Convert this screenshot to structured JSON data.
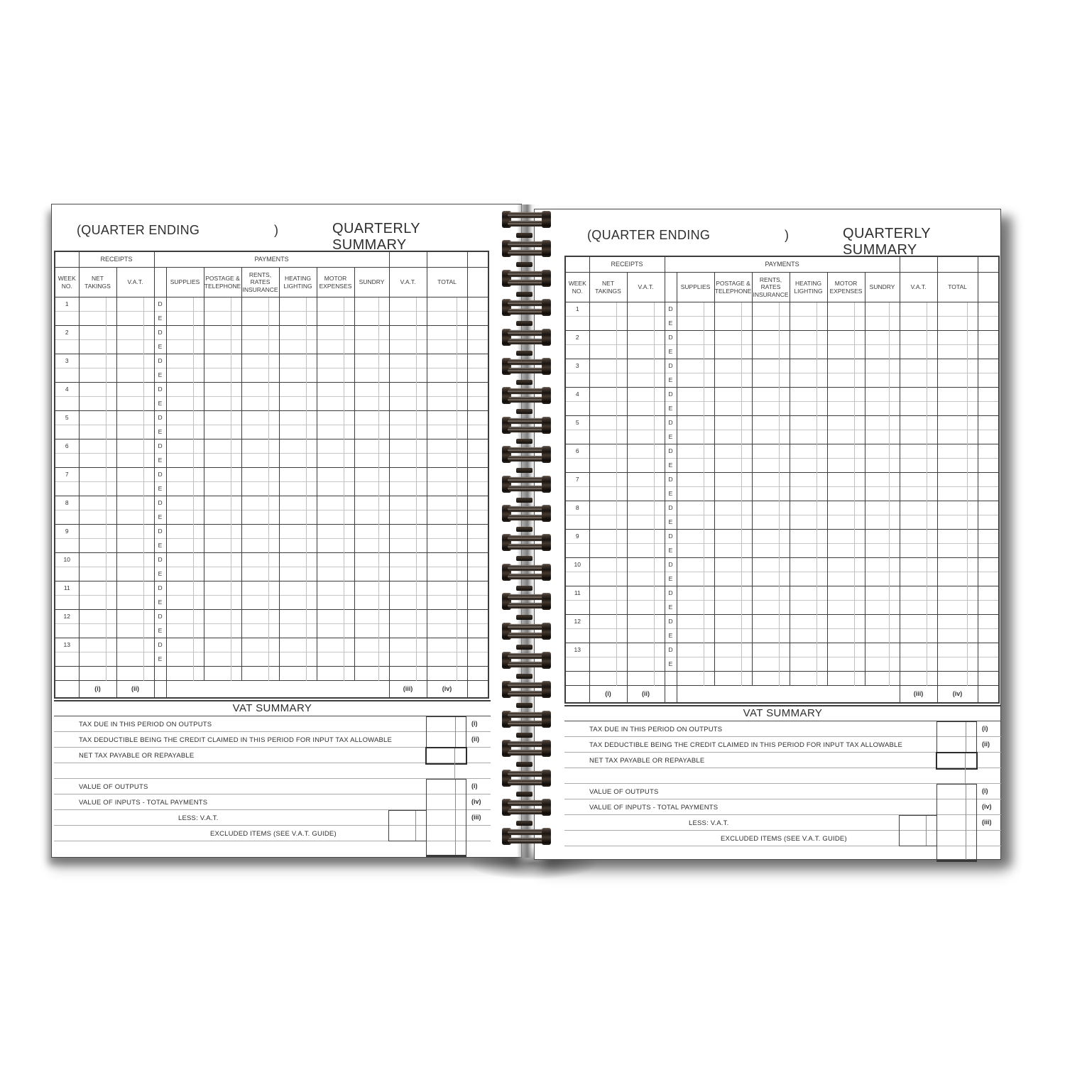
{
  "page": {
    "header": {
      "quarter_ending_label": "(QUARTER ENDING",
      "closing_paren": ")",
      "title": "QUARTERLY SUMMARY"
    },
    "table": {
      "group_headers": {
        "receipts": "RECEIPTS",
        "payments": "PAYMENTS"
      },
      "col_headers": {
        "week": "WEEK NO.",
        "net_takings": "NET TAKINGS",
        "vat_receipts": "V.A.T.",
        "supplies": "SUPPLIES",
        "postage": "POSTAGE & TELEPHONE",
        "rents": "RENTS, RATES INSURANCE",
        "heating": "HEATING LIGHTING",
        "motor": "MOTOR EXPENSES",
        "sundry": "SUNDRY",
        "vat_payments": "V.A.T.",
        "total": "TOTAL"
      },
      "weeks": [
        "1",
        "2",
        "3",
        "4",
        "5",
        "6",
        "7",
        "8",
        "9",
        "10",
        "11",
        "12",
        "13"
      ],
      "day_row_labels": [
        "D",
        "E"
      ],
      "footer_markers": {
        "net_takings": "(i)",
        "vat_receipts": "(ii)",
        "vat_payments": "(iii)",
        "total": "(iv)"
      }
    },
    "vat_summary": {
      "title": "VAT SUMMARY",
      "rows": [
        {
          "label": "TAX DUE IN THIS PERIOD ON OUTPUTS",
          "marker": "(i)"
        },
        {
          "label": "TAX DEDUCTIBLE BEING THE CREDIT CLAIMED IN THIS PERIOD FOR INPUT TAX ALLOWABLE",
          "marker": "(ii)"
        },
        {
          "label": "NET TAX PAYABLE OR REPAYABLE",
          "marker": ""
        },
        {
          "label": "",
          "marker": ""
        },
        {
          "label": "VALUE OF OUTPUTS",
          "marker": "(i)"
        },
        {
          "label": "VALUE OF INPUTS - TOTAL PAYMENTS",
          "marker": "(iv)"
        },
        {
          "label": "LESS: V.A.T.",
          "marker": "(iii)"
        },
        {
          "label": "EXCLUDED ITEMS (SEE V.A.T. GUIDE)",
          "marker": ""
        },
        {
          "label": "",
          "marker": ""
        }
      ]
    }
  },
  "colors": {
    "paper": "#ffffff",
    "line_dark": "#3d3d3d",
    "line_light": "#c0c0c0",
    "text": "#333333",
    "binding_wire": "#1d1611",
    "binding_highlight": "#93897f",
    "spine_gray": "#8f8f8f"
  }
}
